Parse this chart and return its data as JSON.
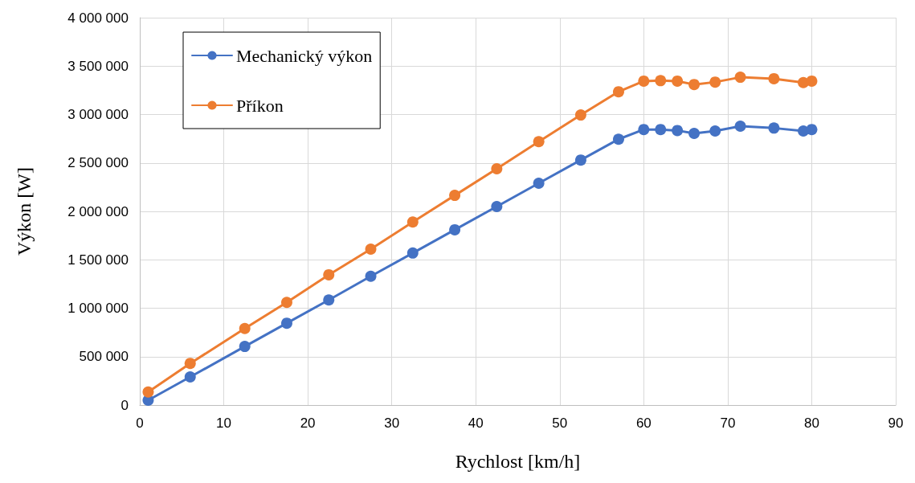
{
  "chart_data": {
    "type": "line",
    "xlabel": "Rychlost [km/h]",
    "ylabel": "Výkon [W]",
    "xlim": [
      0,
      90
    ],
    "xticks": [
      0,
      10,
      20,
      30,
      40,
      50,
      60,
      70,
      80,
      90
    ],
    "ylim": [
      0,
      4000000
    ],
    "yticks": [
      {
        "value": 0,
        "label": "0"
      },
      {
        "value": 500000,
        "label": "500 000"
      },
      {
        "value": 1000000,
        "label": "1 000 000"
      },
      {
        "value": 1500000,
        "label": "1 500 000"
      },
      {
        "value": 2000000,
        "label": "2 000 000"
      },
      {
        "value": 2500000,
        "label": "2 500 000"
      },
      {
        "value": 3000000,
        "label": "3 000 000"
      },
      {
        "value": 3500000,
        "label": "3 500 000"
      },
      {
        "value": 4000000,
        "label": "4 000 000"
      }
    ],
    "grid": true,
    "legend": "top left",
    "marker": "circle",
    "line_style": "solid",
    "x": [
      1,
      6,
      12.5,
      17.5,
      22.5,
      27.5,
      32.5,
      37.5,
      42.5,
      47.5,
      52.5,
      57,
      60,
      62,
      64,
      66,
      68.5,
      71.5,
      75.5,
      79,
      80
    ],
    "series": [
      {
        "name": "Mechanický výkon",
        "color": "#4472c4",
        "values": [
          50000,
          290000,
          605000,
          845000,
          1085000,
          1330000,
          1570000,
          1810000,
          2050000,
          2290000,
          2530000,
          2745000,
          2845000,
          2845000,
          2835000,
          2805000,
          2830000,
          2880000,
          2860000,
          2830000,
          2845000
        ]
      },
      {
        "name": "Příkon",
        "color": "#ed7d31",
        "values": [
          135000,
          430000,
          790000,
          1060000,
          1345000,
          1610000,
          1890000,
          2165000,
          2440000,
          2720000,
          2995000,
          3235000,
          3345000,
          3350000,
          3345000,
          3310000,
          3335000,
          3385000,
          3370000,
          3330000,
          3345000
        ]
      }
    ]
  }
}
